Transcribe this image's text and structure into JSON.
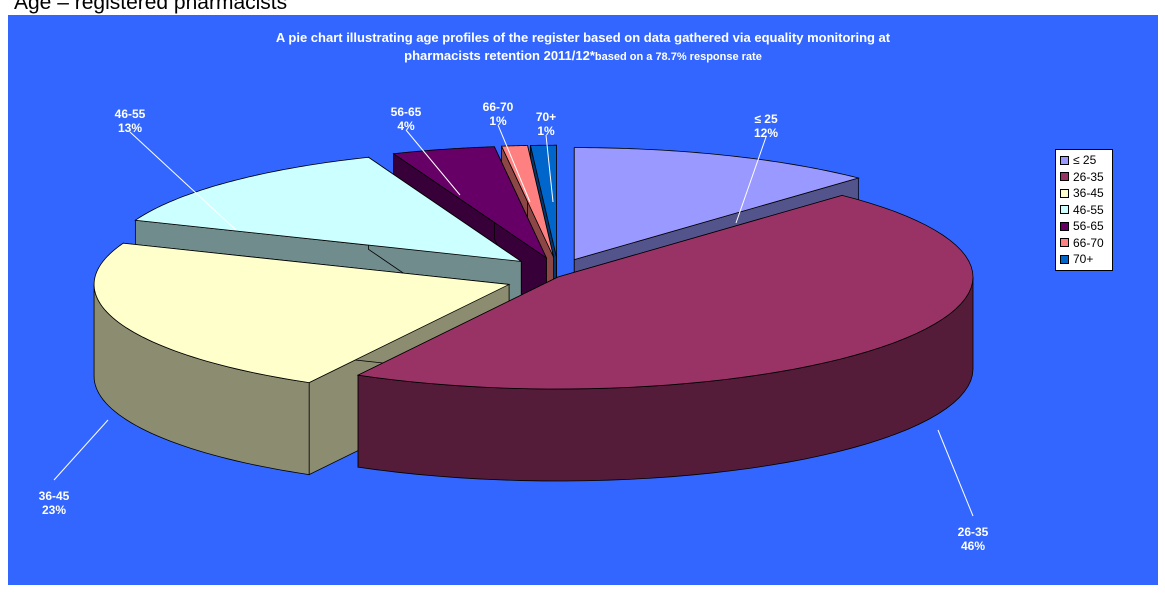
{
  "heading": "Age – registered pharmacists",
  "chart_data": {
    "type": "pie",
    "title": "A pie chart illustrating age profiles of the register based on data gathered via equality monitoring at pharmacists retention 2011/12*",
    "title_line1": "A pie chart illustrating age profiles of the register based on data gathered via equality monitoring at",
    "title_line2": "pharmacists retention 2011/12*",
    "title_note": "based on a 78.7% response rate",
    "background_color": "#3366ff",
    "legend_position": "right",
    "categories": [
      "≤ 25",
      "26-35",
      "36-45",
      "46-55",
      "56-65",
      "66-70",
      "70+"
    ],
    "values": [
      12,
      46,
      23,
      13,
      4,
      1,
      1
    ],
    "value_labels": [
      "12%",
      "46%",
      "23%",
      "13%",
      "4%",
      "1%",
      "1%"
    ],
    "colors": [
      "#9999ff",
      "#993366",
      "#ffffcc",
      "#ccffff",
      "#660066",
      "#ff8080",
      "#0066cc"
    ],
    "exploded": true,
    "three_d": true
  }
}
